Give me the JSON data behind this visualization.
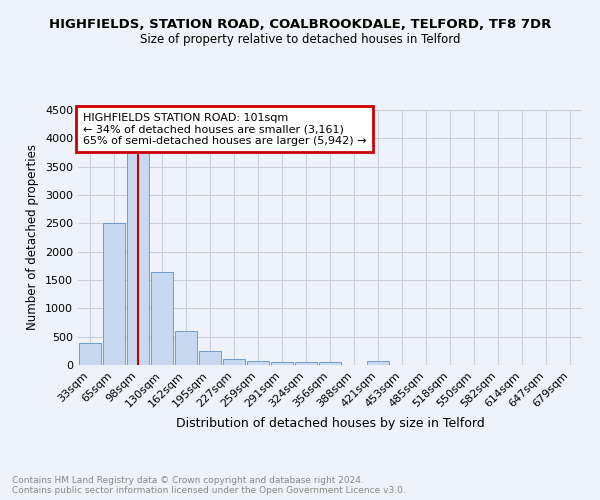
{
  "title": "HIGHFIELDS, STATION ROAD, COALBROOKDALE, TELFORD, TF8 7DR",
  "subtitle": "Size of property relative to detached houses in Telford",
  "xlabel": "Distribution of detached houses by size in Telford",
  "ylabel": "Number of detached properties",
  "footer_line1": "Contains HM Land Registry data © Crown copyright and database right 2024.",
  "footer_line2": "Contains public sector information licensed under the Open Government Licence v3.0.",
  "categories": [
    "33sqm",
    "65sqm",
    "98sqm",
    "130sqm",
    "162sqm",
    "195sqm",
    "227sqm",
    "259sqm",
    "291sqm",
    "324sqm",
    "356sqm",
    "388sqm",
    "421sqm",
    "453sqm",
    "485sqm",
    "518sqm",
    "550sqm",
    "582sqm",
    "614sqm",
    "647sqm",
    "679sqm"
  ],
  "values": [
    380,
    2500,
    3750,
    1650,
    600,
    240,
    110,
    70,
    55,
    50,
    50,
    0,
    70,
    0,
    0,
    0,
    0,
    0,
    0,
    0,
    0
  ],
  "bar_color": "#c8d8f0",
  "bar_edge_color": "#6090c8",
  "ylim": [
    0,
    4500
  ],
  "yticks": [
    0,
    500,
    1000,
    1500,
    2000,
    2500,
    3000,
    3500,
    4000,
    4500
  ],
  "vline_x": 2,
  "vline_color": "#cc0000",
  "annotation_title": "HIGHFIELDS STATION ROAD: 101sqm",
  "annotation_line1": "← 34% of detached houses are smaller (3,161)",
  "annotation_line2": "65% of semi-detached houses are larger (5,942) →",
  "annotation_box_color": "#cc0000",
  "bg_color": "#eef2fa",
  "grid_color": "#c8d0e0"
}
